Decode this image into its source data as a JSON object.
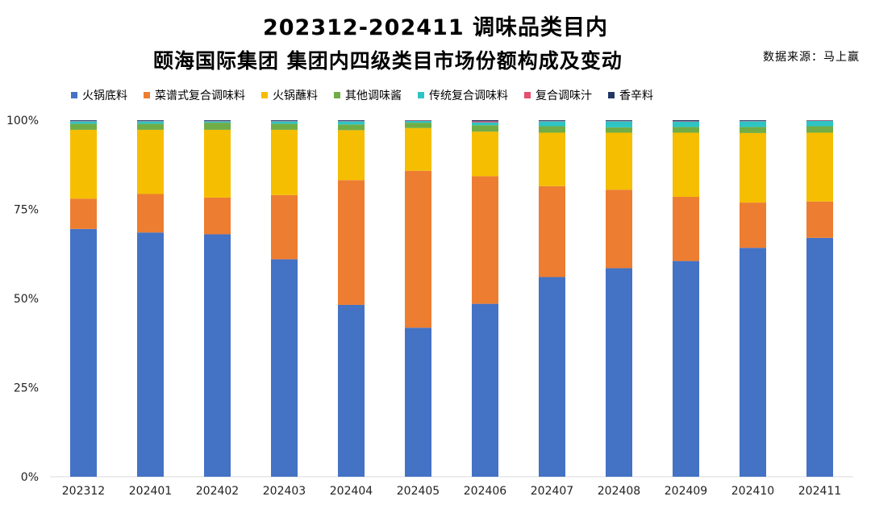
{
  "header": {
    "title_line1": "202312-202411 调味品类目内",
    "title_line2": "颐海国际集团 集团内四级类目市场份额构成及变动",
    "source": "数据来源：马上赢"
  },
  "colors": {
    "火锅底料": "#4472C4",
    "菜谱式复合调味料": "#ED7D31",
    "火锅蘸料": "#F5BE00",
    "其他调味酱": "#70AD47",
    "传统复合调味料": "#2EC4C4",
    "复合调味汁": "#E84C6E",
    "香辛料": "#203864"
  },
  "chart_data": {
    "type": "bar",
    "stacked": true,
    "title": "202312-202411 调味品类目内 颐海国际集团 集团内四级类目市场份额构成及变动",
    "xlabel": "",
    "ylabel": "",
    "ylim": [
      0,
      100
    ],
    "yticks": [
      "0%",
      "25%",
      "50%",
      "75%",
      "100%"
    ],
    "ytick_values": [
      0,
      25,
      50,
      75,
      100
    ],
    "categories": [
      "202312",
      "202401",
      "202402",
      "202403",
      "202404",
      "202405",
      "202406",
      "202407",
      "202408",
      "202409",
      "202410",
      "202411"
    ],
    "series": [
      {
        "name": "火锅底料",
        "values": [
          69.5,
          68.5,
          68.0,
          61.0,
          48.2,
          41.8,
          48.5,
          56.0,
          58.5,
          60.5,
          64.2,
          67.0
        ]
      },
      {
        "name": "菜谱式复合调味料",
        "values": [
          8.5,
          10.8,
          10.3,
          18.0,
          35.0,
          44.0,
          35.8,
          25.5,
          22.0,
          18.0,
          12.7,
          10.2
        ]
      },
      {
        "name": "火锅蘸料",
        "values": [
          19.3,
          18.0,
          19.0,
          18.3,
          14.0,
          12.0,
          12.5,
          15.0,
          16.0,
          18.0,
          19.5,
          19.3
        ]
      },
      {
        "name": "其他调味酱",
        "values": [
          1.7,
          1.7,
          2.0,
          1.7,
          1.6,
          1.5,
          1.8,
          1.8,
          1.5,
          1.6,
          1.7,
          1.8
        ]
      },
      {
        "name": "传统复合调味料",
        "values": [
          0.7,
          0.7,
          0.4,
          0.7,
          0.9,
          0.5,
          0.8,
          1.4,
          1.7,
          1.5,
          1.6,
          1.5
        ]
      },
      {
        "name": "复合调味汁",
        "values": [
          0.1,
          0.1,
          0.1,
          0.1,
          0.1,
          0.1,
          0.3,
          0.1,
          0.1,
          0.1,
          0.1,
          0.1
        ]
      },
      {
        "name": "香辛料",
        "values": [
          0.2,
          0.2,
          0.2,
          0.2,
          0.2,
          0.1,
          0.3,
          0.2,
          0.2,
          0.3,
          0.2,
          0.1
        ]
      }
    ],
    "legend_position": "top"
  }
}
